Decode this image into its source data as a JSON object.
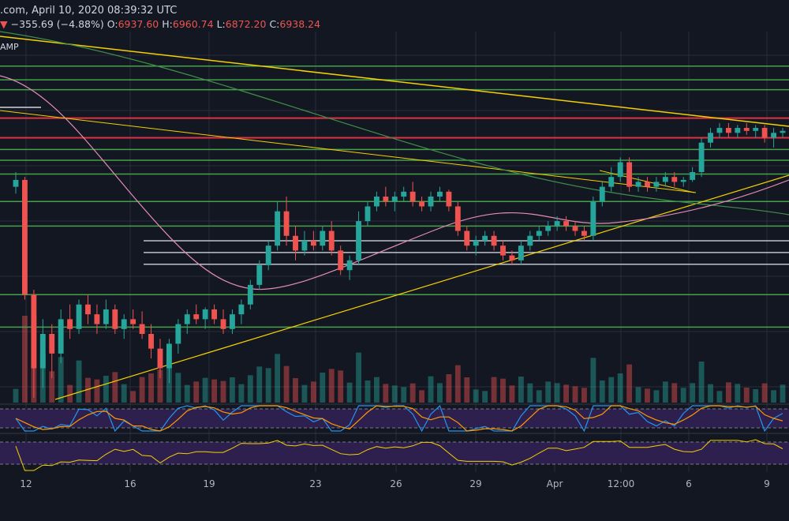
{
  "header": {
    "source_date": ".com, April 10, 2020 08:39:32 UTC",
    "change_arrow": "▼",
    "change": "−355.69 (−4.88%)",
    "o_label": "O:",
    "o_value": "6937.60",
    "h_label": "H:",
    "h_value": "6960.74",
    "l_label": "L:",
    "l_value": "6872.20",
    "c_label": "C:",
    "c_value": "6938.24",
    "indicator_tag": "AMP"
  },
  "colors": {
    "background": "#131722",
    "up": "#26a69a",
    "down": "#ef5350",
    "resistance": "#f23645",
    "support": "#4caf50",
    "trendline": "#f5d000",
    "ma_pink": "#e38cb5",
    "ma_green": "#3f8f4a",
    "stoch_k": "#2196f3",
    "stoch_d": "#ff9800",
    "rsi": "#f5d000",
    "indicator_band": "#2d1f4e"
  },
  "chart_data": {
    "type": "candlestick",
    "x_ticks": [
      "12",
      "16",
      "19",
      "23",
      "26",
      "29",
      "Apr",
      "12:00",
      "6",
      "9"
    ],
    "candles": [
      [
        6550,
        6700,
        6480,
        6620
      ],
      [
        6620,
        6650,
        5400,
        5450
      ],
      [
        5450,
        5500,
        4400,
        4700
      ],
      [
        4700,
        5200,
        4500,
        5050
      ],
      [
        5050,
        5150,
        4600,
        4850
      ],
      [
        4850,
        5300,
        4750,
        5200
      ],
      [
        5200,
        5350,
        5000,
        5100
      ],
      [
        5100,
        5400,
        5050,
        5350
      ],
      [
        5350,
        5450,
        5150,
        5250
      ],
      [
        5250,
        5350,
        5050,
        5150
      ],
      [
        5150,
        5400,
        5100,
        5300
      ],
      [
        5300,
        5350,
        5050,
        5100
      ],
      [
        5100,
        5250,
        5000,
        5200
      ],
      [
        5200,
        5300,
        5100,
        5150
      ],
      [
        5150,
        5280,
        5000,
        5050
      ],
      [
        5050,
        5150,
        4800,
        4900
      ],
      [
        4900,
        5000,
        4600,
        4700
      ],
      [
        4700,
        5000,
        4550,
        4950
      ],
      [
        4950,
        5200,
        4850,
        5150
      ],
      [
        5150,
        5300,
        5050,
        5250
      ],
      [
        5250,
        5350,
        5150,
        5200
      ],
      [
        5200,
        5320,
        5100,
        5300
      ],
      [
        5300,
        5350,
        5150,
        5200
      ],
      [
        5200,
        5300,
        5050,
        5100
      ],
      [
        5100,
        5300,
        5050,
        5250
      ],
      [
        5250,
        5400,
        5150,
        5350
      ],
      [
        5350,
        5600,
        5300,
        5550
      ],
      [
        5550,
        5800,
        5500,
        5750
      ],
      [
        5750,
        6000,
        5700,
        5950
      ],
      [
        5950,
        6400,
        5900,
        6300
      ],
      [
        6300,
        6450,
        5950,
        6050
      ],
      [
        6050,
        6150,
        5800,
        5900
      ],
      [
        5900,
        6100,
        5850,
        6000
      ],
      [
        6000,
        6100,
        5900,
        5950
      ],
      [
        5950,
        6150,
        5900,
        6100
      ],
      [
        6100,
        6200,
        5850,
        5900
      ],
      [
        5900,
        5950,
        5650,
        5700
      ],
      [
        5700,
        5850,
        5600,
        5800
      ],
      [
        5800,
        6300,
        5750,
        6200
      ],
      [
        6200,
        6400,
        6150,
        6350
      ],
      [
        6350,
        6500,
        6300,
        6450
      ],
      [
        6450,
        6550,
        6350,
        6400
      ],
      [
        6400,
        6500,
        6300,
        6450
      ],
      [
        6450,
        6550,
        6400,
        6500
      ],
      [
        6500,
        6600,
        6350,
        6400
      ],
      [
        6400,
        6450,
        6300,
        6350
      ],
      [
        6350,
        6500,
        6300,
        6450
      ],
      [
        6450,
        6550,
        6400,
        6500
      ],
      [
        6500,
        6520,
        6300,
        6350
      ],
      [
        6350,
        6400,
        6050,
        6100
      ],
      [
        6100,
        6150,
        5900,
        5950
      ],
      [
        5950,
        6050,
        5850,
        6000
      ],
      [
        6000,
        6100,
        5950,
        6050
      ],
      [
        6050,
        6100,
        5900,
        5950
      ],
      [
        5950,
        6000,
        5800,
        5850
      ],
      [
        5850,
        5900,
        5750,
        5800
      ],
      [
        5800,
        6000,
        5750,
        5950
      ],
      [
        5950,
        6100,
        5900,
        6050
      ],
      [
        6050,
        6150,
        6000,
        6100
      ],
      [
        6100,
        6200,
        6050,
        6150
      ],
      [
        6150,
        6250,
        6100,
        6200
      ],
      [
        6200,
        6250,
        6100,
        6150
      ],
      [
        6150,
        6200,
        6050,
        6100
      ],
      [
        6100,
        6150,
        6000,
        6050
      ],
      [
        6050,
        6450,
        6000,
        6400
      ],
      [
        6400,
        6600,
        6350,
        6550
      ],
      [
        6550,
        6750,
        6500,
        6650
      ],
      [
        6650,
        6850,
        6600,
        6800
      ],
      [
        6800,
        6850,
        6500,
        6550
      ],
      [
        6550,
        6650,
        6500,
        6600
      ],
      [
        6600,
        6650,
        6500,
        6550
      ],
      [
        6550,
        6650,
        6500,
        6600
      ],
      [
        6600,
        6700,
        6550,
        6650
      ],
      [
        6650,
        6700,
        6550,
        6600
      ],
      [
        6600,
        6650,
        6550,
        6620
      ],
      [
        6620,
        6750,
        6600,
        6700
      ],
      [
        6700,
        7050,
        6650,
        7000
      ],
      [
        7000,
        7150,
        6950,
        7100
      ],
      [
        7100,
        7200,
        7050,
        7150
      ],
      [
        7150,
        7200,
        7050,
        7100
      ],
      [
        7100,
        7180,
        7050,
        7150
      ],
      [
        7150,
        7200,
        7080,
        7120
      ],
      [
        7120,
        7180,
        7050,
        7150
      ],
      [
        7150,
        7180,
        7000,
        7050
      ],
      [
        7050,
        7150,
        6950,
        7100
      ],
      [
        7100,
        7150,
        7050,
        7120
      ]
    ],
    "horizontal_levels": [
      {
        "price": 7780,
        "kind": "support"
      },
      {
        "price": 7640,
        "kind": "support"
      },
      {
        "price": 7540,
        "kind": "support"
      },
      {
        "price": 7250,
        "kind": "resistance"
      },
      {
        "price": 7050,
        "kind": "resistance"
      },
      {
        "price": 6930,
        "kind": "support"
      },
      {
        "price": 6820,
        "kind": "support"
      },
      {
        "price": 6680,
        "kind": "support"
      },
      {
        "price": 6400,
        "kind": "support"
      },
      {
        "price": 6150,
        "kind": "support"
      },
      {
        "price": 6000,
        "kind": "neutral"
      },
      {
        "price": 5880,
        "kind": "neutral"
      },
      {
        "price": 5760,
        "kind": "neutral"
      },
      {
        "price": 5450,
        "kind": "support"
      },
      {
        "price": 5120,
        "kind": "support"
      }
    ],
    "ylim": [
      4350,
      8100
    ]
  }
}
